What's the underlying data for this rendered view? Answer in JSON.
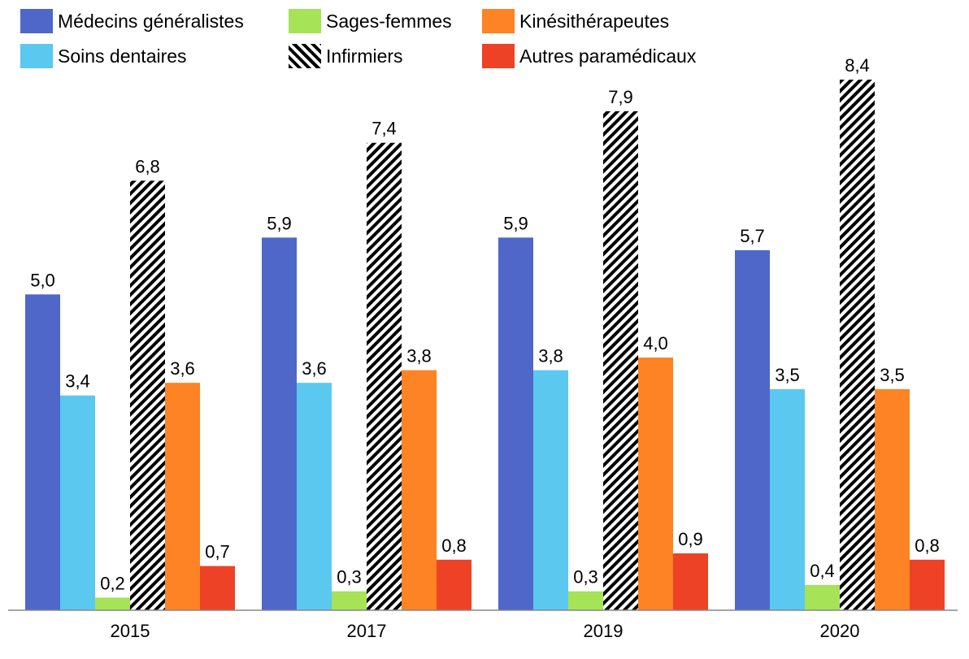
{
  "chart_data": {
    "type": "bar",
    "title": "",
    "xlabel": "",
    "ylabel": "",
    "ylim": [
      0,
      8.4
    ],
    "grid": false,
    "legend_placement": "top",
    "categories": [
      "2015",
      "2017",
      "2019",
      "2020"
    ],
    "series": [
      {
        "name": "Médecins généralistes",
        "color": "#4F67C8",
        "pattern": "solid",
        "values": [
          5.0,
          5.9,
          5.9,
          5.7
        ],
        "labels": [
          "5,0",
          "5,9",
          "5,9",
          "5,7"
        ]
      },
      {
        "name": "Soins dentaires",
        "color": "#5BC8F0",
        "pattern": "solid",
        "values": [
          3.4,
          3.6,
          3.8,
          3.5
        ],
        "labels": [
          "3,4",
          "3,6",
          "3,8",
          "3,5"
        ]
      },
      {
        "name": "Sages-femmes",
        "color": "#A6E356",
        "pattern": "solid",
        "values": [
          0.2,
          0.3,
          0.3,
          0.4
        ],
        "labels": [
          "0,2",
          "0,3",
          "0,3",
          "0,4"
        ]
      },
      {
        "name": "Infirmiers",
        "color": "#000000",
        "pattern": "hatch",
        "values": [
          6.8,
          7.4,
          7.9,
          8.4
        ],
        "labels": [
          "6,8",
          "7,4",
          "7,9",
          "8,4"
        ]
      },
      {
        "name": "Kinésithérapeutes",
        "color": "#FD8324",
        "pattern": "solid",
        "values": [
          3.6,
          3.8,
          4.0,
          3.5
        ],
        "labels": [
          "3,6",
          "3,8",
          "4,0",
          "3,5"
        ]
      },
      {
        "name": "Autres paramédicaux",
        "color": "#EE4226",
        "pattern": "solid",
        "values": [
          0.7,
          0.8,
          0.9,
          0.8
        ],
        "labels": [
          "0,7",
          "0,8",
          "0,9",
          "0,8"
        ]
      }
    ]
  },
  "legend": {
    "items": [
      {
        "label": "Médecins généralistes",
        "color": "#4F67C8",
        "pattern": "solid"
      },
      {
        "label": "Sages-femmes",
        "color": "#A6E356",
        "pattern": "solid"
      },
      {
        "label": "Kinésithérapeutes",
        "color": "#FD8324",
        "pattern": "solid"
      },
      {
        "label": "Soins dentaires",
        "color": "#5BC8F0",
        "pattern": "solid"
      },
      {
        "label": "Infirmiers",
        "color": "#000000",
        "pattern": "hatch"
      },
      {
        "label": "Autres paramédicaux",
        "color": "#EE4226",
        "pattern": "solid"
      }
    ]
  }
}
